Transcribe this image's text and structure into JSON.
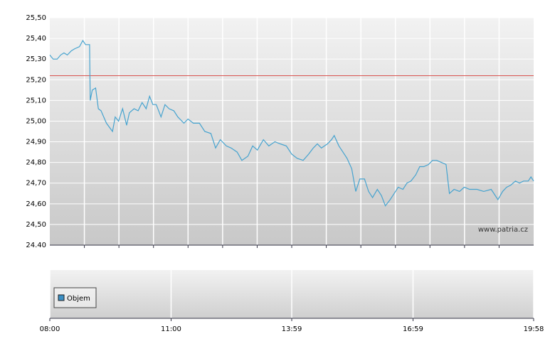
{
  "chart_data": {
    "type": "line",
    "x": [
      "08:00",
      "08:05",
      "08:11",
      "08:16",
      "08:21",
      "08:26",
      "08:32",
      "08:37",
      "08:44",
      "08:49",
      "08:53",
      "08:59",
      "09:00",
      "09:03",
      "09:08",
      "09:12",
      "09:16",
      "09:24",
      "09:33",
      "09:37",
      "09:42",
      "09:48",
      "09:54",
      "09:58",
      "10:05",
      "10:11",
      "10:17",
      "10:23",
      "10:28",
      "10:33",
      "10:38",
      "10:45",
      "10:51",
      "10:57",
      "11:04",
      "11:10",
      "11:19",
      "11:25",
      "11:33",
      "11:42",
      "11:50",
      "11:59",
      "12:06",
      "12:13",
      "12:22",
      "12:29",
      "12:38",
      "12:45",
      "12:54",
      "13:01",
      "13:08",
      "13:17",
      "13:25",
      "13:34",
      "13:42",
      "13:51",
      "13:59",
      "14:07",
      "14:16",
      "14:24",
      "14:31",
      "14:37",
      "14:43",
      "14:52",
      "14:58",
      "15:02",
      "15:09",
      "15:15",
      "15:21",
      "15:28",
      "15:34",
      "15:40",
      "15:47",
      "15:53",
      "15:59",
      "16:06",
      "16:12",
      "16:18",
      "16:25",
      "16:31",
      "16:37",
      "16:44",
      "16:50",
      "16:56",
      "17:03",
      "17:09",
      "17:15",
      "17:22",
      "17:28",
      "17:34",
      "17:41",
      "17:48",
      "17:53",
      "18:00",
      "18:08",
      "18:15",
      "18:23",
      "18:34",
      "18:44",
      "18:55",
      "19:05",
      "19:12",
      "19:18",
      "19:24",
      "19:31",
      "19:37",
      "19:43",
      "19:50",
      "19:54",
      "19:58"
    ],
    "values": [
      25.32,
      25.3,
      25.3,
      25.32,
      25.33,
      25.32,
      25.34,
      25.35,
      25.36,
      25.39,
      25.37,
      25.37,
      25.1,
      25.15,
      25.16,
      25.06,
      25.05,
      24.99,
      24.95,
      25.02,
      25.0,
      25.06,
      24.98,
      25.04,
      25.06,
      25.05,
      25.09,
      25.06,
      25.12,
      25.08,
      25.08,
      25.02,
      25.08,
      25.06,
      25.05,
      25.02,
      24.99,
      25.01,
      24.99,
      24.99,
      24.95,
      24.94,
      24.87,
      24.91,
      24.88,
      24.87,
      24.85,
      24.81,
      24.83,
      24.88,
      24.86,
      24.91,
      24.88,
      24.9,
      24.89,
      24.88,
      24.84,
      24.82,
      24.81,
      24.84,
      24.87,
      24.89,
      24.87,
      24.89,
      24.91,
      24.93,
      24.88,
      24.85,
      24.82,
      24.77,
      24.66,
      24.72,
      24.72,
      24.66,
      24.63,
      24.67,
      24.64,
      24.59,
      24.62,
      24.65,
      24.68,
      24.67,
      24.7,
      24.71,
      24.74,
      24.78,
      24.78,
      24.79,
      24.81,
      24.81,
      24.8,
      24.79,
      24.65,
      24.67,
      24.66,
      24.68,
      24.67,
      24.67,
      24.66,
      24.67,
      24.62,
      24.66,
      24.68,
      24.69,
      24.71,
      24.7,
      24.71,
      24.71,
      24.73,
      24.71
    ],
    "color": "#46a3cf",
    "reference_line": 25.22,
    "reference_color": "#d9534f",
    "ylim": [
      24.4,
      25.5
    ],
    "yticks": [
      {
        "value": 24.4,
        "label": "24.40"
      },
      {
        "value": 24.5,
        "label": "24,50"
      },
      {
        "value": 24.6,
        "label": "24,60"
      },
      {
        "value": 24.7,
        "label": "24,70"
      },
      {
        "value": 24.8,
        "label": "24,80"
      },
      {
        "value": 24.9,
        "label": "24,90"
      },
      {
        "value": 25.0,
        "label": "25,00"
      },
      {
        "value": 25.1,
        "label": "25,10"
      },
      {
        "value": 25.2,
        "label": "25,20"
      },
      {
        "value": 25.3,
        "label": "25,30"
      },
      {
        "value": 25.4,
        "label": "25,40"
      },
      {
        "value": 25.5,
        "label": "25,50"
      }
    ],
    "xlim": [
      "08:00",
      "19:58"
    ],
    "xticks": [
      "08:00",
      "11:00",
      "13:59",
      "16:59",
      "19:58"
    ],
    "grid": true,
    "watermark": "www.patria.cz",
    "volume_legend": "Objem",
    "volume_color": "#3a8fc4"
  }
}
